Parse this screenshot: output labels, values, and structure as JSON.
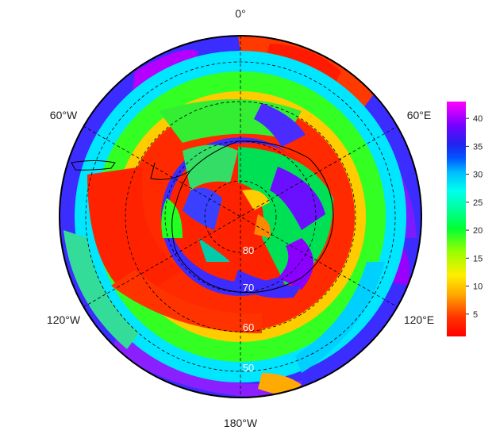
{
  "map": {
    "projection": "south-polar-stereographic",
    "longitude_labels": [
      "0°",
      "60°E",
      "120°E",
      "180°W",
      "120°W",
      "60°W"
    ],
    "latitude_labels": [
      "80",
      "70",
      "60",
      "50"
    ],
    "colormap": [
      "#ff0000",
      "#ff6600",
      "#ffcc00",
      "#ccff00",
      "#33ff00",
      "#00ff66",
      "#00ffcc",
      "#00ccff",
      "#0066ff",
      "#1a1aff",
      "#6600ff",
      "#cc00ff",
      "#ff00ff"
    ]
  },
  "colorbar": {
    "ticks": [
      "5",
      "10",
      "15",
      "20",
      "25",
      "30",
      "35",
      "40"
    ],
    "min": 1,
    "max": 43
  },
  "colors": {
    "ocean_band_red": "#ff2a00",
    "coast": "#000000",
    "grid": "#000000"
  }
}
